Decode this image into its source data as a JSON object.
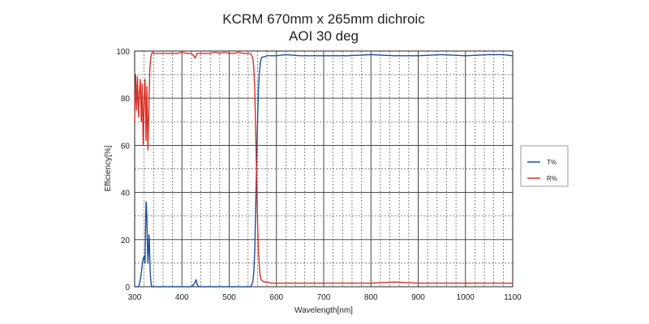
{
  "chart_data": {
    "type": "line",
    "title": "KCRM 670mm x 265mm dichroic",
    "subtitle": "AOI 30 deg",
    "xlabel": "Wavelength[nm]",
    "ylabel": "Efficiency[%]",
    "xlim": [
      300,
      1100
    ],
    "ylim": [
      0,
      100
    ],
    "x_ticks": [
      300,
      400,
      500,
      600,
      700,
      800,
      900,
      1000,
      1100
    ],
    "x_tick_labels": [
      "300",
      "400",
      "500",
      "600",
      "700",
      "800",
      "900",
      "1000",
      "1100"
    ],
    "y_ticks": [
      0,
      20,
      40,
      60,
      80,
      100
    ],
    "y_tick_labels": [
      "0",
      "20",
      "40",
      "60",
      "80",
      "100"
    ],
    "x_minor_step": 20,
    "y_minor_step": 10,
    "grid": true,
    "legend_position": "right",
    "series": [
      {
        "name": "T%",
        "color": "#1f4e9c",
        "x": [
          300,
          302,
          305,
          308,
          310,
          312,
          314,
          316,
          318,
          320,
          322,
          323,
          324,
          325,
          326,
          327,
          328,
          329,
          330,
          331,
          332,
          333,
          334,
          335,
          336,
          338,
          340,
          345,
          350,
          360,
          370,
          380,
          390,
          400,
          410,
          420,
          425,
          428,
          430,
          432,
          435,
          440,
          450,
          460,
          470,
          480,
          490,
          500,
          510,
          520,
          530,
          535,
          540,
          545,
          548,
          550,
          552,
          554,
          556,
          558,
          560,
          562,
          564,
          566,
          568,
          570,
          575,
          580,
          590,
          600,
          620,
          650,
          700,
          750,
          800,
          850,
          900,
          950,
          1000,
          1050,
          1080,
          1100
        ],
        "values": [
          0,
          0,
          0,
          0,
          1,
          3,
          6,
          9,
          12,
          13,
          10,
          25,
          36,
          34,
          28,
          18,
          10,
          14,
          22,
          20,
          12,
          6,
          3,
          1,
          0,
          0,
          0,
          0,
          0,
          0,
          0,
          0,
          0,
          0,
          0,
          0,
          1,
          2,
          3,
          1,
          0,
          0,
          0,
          0,
          0,
          0,
          0,
          0,
          0,
          0,
          0,
          0,
          0,
          0,
          1,
          2,
          6,
          15,
          32,
          52,
          70,
          84,
          91,
          95,
          97,
          97.5,
          97.5,
          98,
          98,
          98,
          98.5,
          98,
          98,
          98,
          98.5,
          98,
          98,
          98.5,
          98,
          98.5,
          98.5,
          98
        ]
      },
      {
        "name": "R%",
        "color": "#d93025",
        "x": [
          300,
          302,
          304,
          306,
          308,
          310,
          312,
          314,
          316,
          318,
          320,
          322,
          324,
          326,
          328,
          330,
          332,
          334,
          336,
          338,
          340,
          345,
          350,
          360,
          370,
          380,
          390,
          400,
          410,
          420,
          425,
          428,
          430,
          432,
          435,
          440,
          450,
          460,
          470,
          480,
          490,
          500,
          510,
          520,
          530,
          535,
          540,
          545,
          548,
          550,
          552,
          554,
          556,
          558,
          560,
          562,
          564,
          566,
          568,
          570,
          575,
          580,
          590,
          600,
          620,
          650,
          700,
          750,
          800,
          850,
          900,
          950,
          1000,
          1050,
          1080,
          1100
        ],
        "values": [
          70,
          90,
          75,
          89,
          72,
          82,
          88,
          70,
          86,
          60,
          80,
          88,
          62,
          85,
          58,
          75,
          92,
          97,
          99,
          99.5,
          99,
          99,
          99,
          99,
          99,
          99,
          99,
          99.5,
          99,
          99,
          98,
          97,
          98,
          99,
          99,
          99,
          99,
          99,
          99.5,
          99,
          99.5,
          99,
          99,
          99.5,
          99,
          99,
          99,
          99,
          98,
          97,
          93,
          84,
          67,
          47,
          28,
          15,
          8,
          4,
          3,
          2.5,
          2,
          2,
          1.5,
          1.5,
          1.5,
          1.5,
          1.5,
          1.5,
          1.5,
          2,
          1.5,
          1.5,
          1.5,
          1.5,
          1.5,
          1.5
        ]
      }
    ]
  }
}
